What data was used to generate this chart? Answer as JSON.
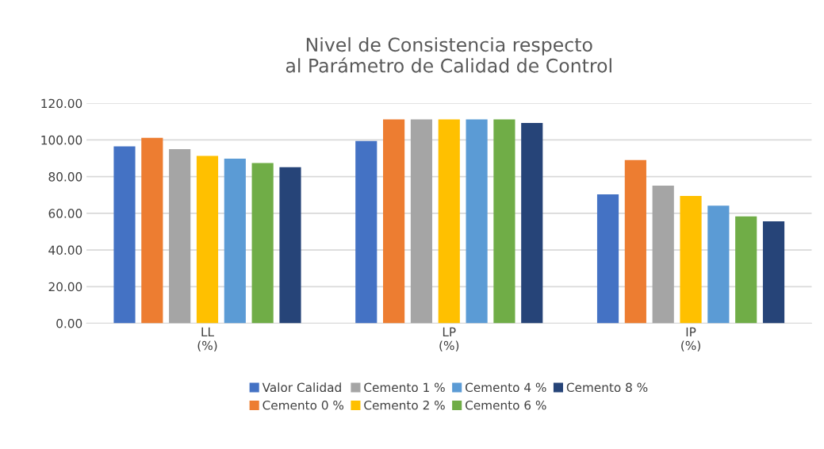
{
  "chart_data": {
    "type": "bar",
    "title": "Nivel de Consistencia respecto\nal Parámetro de Calidad de Control",
    "categories": [
      "LL\n(%)",
      "LP\n(%)",
      "IP\n(%)"
    ],
    "series": [
      {
        "name": "Valor Calidad",
        "color": "#4472c4",
        "values": [
          96.5,
          99.4,
          70.3
        ]
      },
      {
        "name": "Cemento 0 %",
        "color": "#ed7d31",
        "values": [
          101.2,
          111.2,
          89.0
        ]
      },
      {
        "name": "Cemento 1 %",
        "color": "#a5a5a5",
        "values": [
          95.0,
          111.2,
          75.1
        ]
      },
      {
        "name": "Cemento 2 %",
        "color": "#ffc000",
        "values": [
          91.3,
          111.2,
          69.5
        ]
      },
      {
        "name": "Cemento 4 %",
        "color": "#5b9bd5",
        "values": [
          89.8,
          111.2,
          64.1
        ]
      },
      {
        "name": "Cemento 6 %",
        "color": "#70ad47",
        "values": [
          87.4,
          111.2,
          58.3
        ]
      },
      {
        "name": "Cemento 8 %",
        "color": "#264478",
        "values": [
          85.1,
          109.3,
          55.6
        ]
      }
    ],
    "ylim": [
      0,
      120
    ],
    "yticks": [
      {
        "value": 0,
        "label": "0.00"
      },
      {
        "value": 20,
        "label": "20.00"
      },
      {
        "value": 40,
        "label": "40.00"
      },
      {
        "value": 60,
        "label": "60.00"
      },
      {
        "value": 80,
        "label": "80.00"
      },
      {
        "value": 100,
        "label": "100.00"
      },
      {
        "value": 120,
        "label": "120.00"
      }
    ],
    "grid": "y",
    "legend": "bottom"
  }
}
